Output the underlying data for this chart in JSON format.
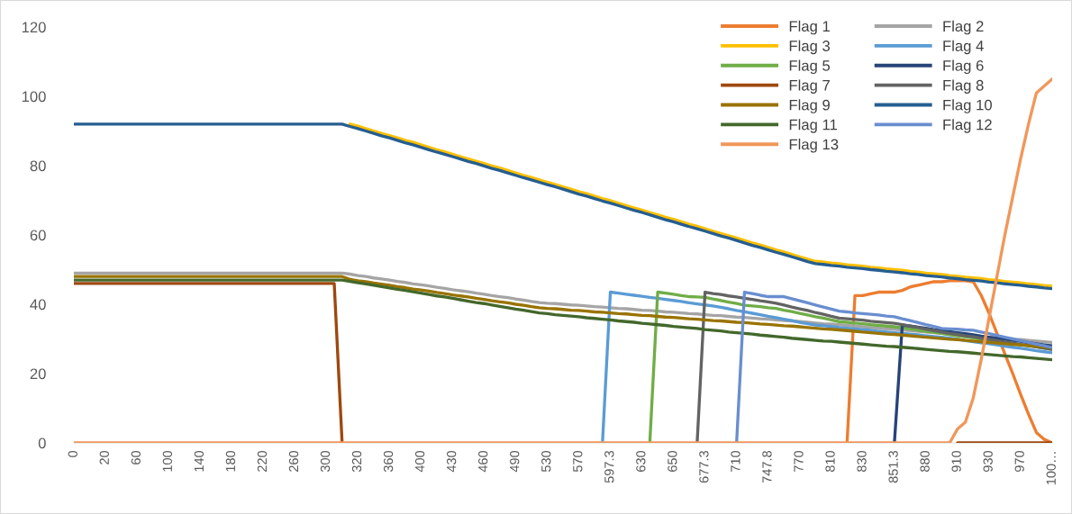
{
  "chart_data": {
    "type": "line",
    "categories": [
      "0",
      null,
      null,
      null,
      "20",
      null,
      null,
      null,
      "60",
      null,
      null,
      null,
      "100",
      null,
      null,
      null,
      "140",
      null,
      null,
      null,
      "180",
      null,
      null,
      null,
      "220",
      null,
      null,
      null,
      "260",
      null,
      null,
      null,
      "300",
      null,
      null,
      null,
      "320",
      null,
      null,
      null,
      "360",
      null,
      null,
      null,
      "400",
      null,
      null,
      null,
      "430",
      null,
      null,
      null,
      "460",
      null,
      null,
      null,
      "490",
      null,
      null,
      null,
      "530",
      null,
      null,
      null,
      "570",
      null,
      null,
      null,
      "597.3",
      null,
      null,
      null,
      "630",
      null,
      null,
      null,
      "650",
      null,
      null,
      null,
      "677.3",
      null,
      null,
      null,
      "710",
      null,
      null,
      null,
      "747.8",
      null,
      null,
      null,
      "770",
      null,
      null,
      null,
      "810",
      null,
      null,
      null,
      "830",
      null,
      null,
      null,
      "851.3",
      null,
      null,
      null,
      "880",
      null,
      null,
      null,
      "910",
      null,
      null,
      null,
      "930",
      null,
      null,
      null,
      "970",
      null,
      null,
      null,
      "100…"
    ],
    "series": [
      {
        "name": "Flag 1",
        "color": "#ed7d31",
        "values": [
          null,
          null,
          null,
          null,
          null,
          null,
          null,
          null,
          null,
          null,
          null,
          null,
          null,
          null,
          null,
          null,
          null,
          null,
          null,
          null,
          null,
          null,
          null,
          null,
          null,
          null,
          null,
          null,
          null,
          null,
          null,
          null,
          null,
          null,
          null,
          null,
          null,
          null,
          null,
          null,
          null,
          null,
          null,
          null,
          null,
          null,
          null,
          null,
          null,
          null,
          null,
          null,
          null,
          null,
          null,
          null,
          null,
          null,
          null,
          null,
          null,
          null,
          null,
          null,
          null,
          null,
          null,
          null,
          null,
          null,
          null,
          null,
          null,
          null,
          null,
          null,
          null,
          null,
          null,
          null,
          null,
          null,
          null,
          null,
          null,
          null,
          null,
          null,
          null,
          null,
          null,
          null,
          null,
          null,
          null,
          null,
          null,
          null,
          0,
          42.5,
          42.5,
          43.0,
          43.5,
          43.5,
          43.5,
          44.0,
          45.0,
          45.5,
          46.0,
          46.5,
          46.5,
          46.8,
          46.8,
          46.8,
          46.5,
          42.6,
          37.4,
          31.6,
          25.7,
          20.0,
          14.0,
          8.3,
          3.0,
          1.0,
          0
        ]
      },
      {
        "name": "Flag 2",
        "color": "#a5a5a5",
        "values": [
          49,
          49,
          49,
          49,
          49,
          49,
          49,
          49,
          49,
          49,
          49,
          49,
          49,
          49,
          49,
          49,
          49,
          49,
          49,
          49,
          49,
          49,
          49,
          49,
          49,
          49,
          49,
          49,
          49,
          49,
          49,
          49,
          49,
          49,
          49,
          48.7,
          48.3,
          48.0,
          47.6,
          47.3,
          47.0,
          46.6,
          46.3,
          45.9,
          45.6,
          45.3,
          44.9,
          44.6,
          44.2,
          43.9,
          43.6,
          43.2,
          42.9,
          42.5,
          42.2,
          41.9,
          41.5,
          41.2,
          40.8,
          40.5,
          40.3,
          40.2,
          40.0,
          39.8,
          39.7,
          39.5,
          39.3,
          39.2,
          39.0,
          38.8,
          38.7,
          38.5,
          38.3,
          38.2,
          38.0,
          37.8,
          37.7,
          37.5,
          37.3,
          37.2,
          37.0,
          36.8,
          36.7,
          36.5,
          36.3,
          36.2,
          36.0,
          35.8,
          35.7,
          35.5,
          35.3,
          35.2,
          35.0,
          34.8,
          34.6,
          34.4,
          34.3,
          34.1,
          33.9,
          33.7,
          33.5,
          33.3,
          33.1,
          32.9,
          32.8,
          32.6,
          32.4,
          32.2,
          32.0,
          31.8,
          31.6,
          31.4,
          31.3,
          31.1,
          30.9,
          30.7,
          30.5,
          30.3,
          30.1,
          29.9,
          29.8,
          29.6,
          29.4,
          29.2,
          29.0
        ]
      },
      {
        "name": "Flag 3",
        "color": "#ffc000",
        "values": [
          null,
          null,
          null,
          null,
          null,
          null,
          null,
          null,
          null,
          null,
          null,
          null,
          null,
          null,
          null,
          null,
          null,
          null,
          null,
          null,
          null,
          null,
          null,
          null,
          null,
          null,
          null,
          null,
          null,
          null,
          null,
          null,
          null,
          null,
          null,
          92.0,
          91.4,
          90.7,
          90.0,
          89.3,
          88.7,
          88.0,
          87.3,
          86.7,
          86.0,
          85.3,
          84.6,
          84.0,
          83.3,
          82.6,
          81.9,
          81.3,
          80.6,
          79.9,
          79.3,
          78.6,
          77.9,
          77.2,
          76.6,
          75.9,
          75.2,
          74.6,
          73.9,
          73.2,
          72.5,
          71.9,
          71.2,
          70.5,
          69.9,
          69.2,
          68.5,
          67.8,
          67.2,
          66.5,
          65.8,
          65.1,
          64.5,
          63.8,
          63.1,
          62.5,
          61.8,
          61.1,
          60.4,
          59.8,
          59.1,
          58.4,
          57.7,
          57.1,
          56.4,
          55.7,
          55.1,
          54.4,
          53.7,
          53.0,
          52.4,
          52.2,
          51.9,
          51.7,
          51.4,
          51.2,
          51.0,
          50.7,
          50.5,
          50.2,
          50.0,
          49.8,
          49.5,
          49.3,
          49.0,
          48.8,
          48.6,
          48.3,
          48.1,
          47.8,
          47.6,
          47.4,
          47.1,
          46.9,
          46.6,
          46.4,
          46.2,
          45.9,
          45.7,
          45.4,
          45.2
        ]
      },
      {
        "name": "Flag 4",
        "color": "#5b9bd5",
        "values": [
          null,
          null,
          null,
          null,
          null,
          null,
          null,
          null,
          null,
          null,
          null,
          null,
          null,
          null,
          null,
          null,
          null,
          null,
          null,
          null,
          null,
          null,
          null,
          null,
          null,
          null,
          null,
          null,
          null,
          null,
          null,
          null,
          null,
          null,
          null,
          null,
          null,
          null,
          null,
          null,
          null,
          null,
          null,
          null,
          null,
          null,
          null,
          null,
          null,
          null,
          null,
          null,
          null,
          null,
          null,
          null,
          null,
          null,
          null,
          null,
          null,
          null,
          null,
          null,
          null,
          null,
          null,
          0,
          43.5,
          43.2,
          42.9,
          42.6,
          42.3,
          42.0,
          41.7,
          41.4,
          41.1,
          40.8,
          40.4,
          40.1,
          39.8,
          39.5,
          39.1,
          38.7,
          38.2,
          37.8,
          37.4,
          37.0,
          36.5,
          36.1,
          35.7,
          35.3,
          34.8,
          34.4,
          34.0,
          33.8,
          33.6,
          33.3,
          33.1,
          32.9,
          32.7,
          32.5,
          32.2,
          32.0,
          31.8,
          31.6,
          31.4,
          31.2,
          30.9,
          30.7,
          30.5,
          30.2,
          29.9,
          29.5,
          29.2,
          28.9,
          28.6,
          28.3,
          27.9,
          27.6,
          27.3,
          27.0,
          26.6,
          26.3,
          26.0
        ]
      },
      {
        "name": "Flag 5",
        "color": "#70ad47",
        "values": [
          null,
          null,
          null,
          null,
          null,
          null,
          null,
          null,
          null,
          null,
          null,
          null,
          null,
          null,
          null,
          null,
          null,
          null,
          null,
          null,
          null,
          null,
          null,
          null,
          null,
          null,
          null,
          null,
          null,
          null,
          null,
          null,
          null,
          null,
          null,
          null,
          null,
          null,
          null,
          null,
          null,
          null,
          null,
          null,
          null,
          null,
          null,
          null,
          null,
          null,
          null,
          null,
          null,
          null,
          null,
          null,
          null,
          null,
          null,
          null,
          null,
          null,
          null,
          null,
          null,
          null,
          null,
          null,
          null,
          null,
          null,
          null,
          null,
          0,
          43.5,
          43.2,
          42.9,
          42.5,
          42.2,
          42.1,
          42.0,
          41.5,
          41.1,
          40.6,
          40.2,
          39.7,
          39.5,
          39.3,
          39.0,
          38.8,
          38.3,
          37.9,
          37.4,
          36.9,
          36.4,
          36.0,
          35.5,
          35.0,
          34.8,
          34.6,
          34.4,
          34.1,
          33.9,
          33.7,
          33.5,
          33.2,
          32.9,
          32.5,
          32.2,
          31.9,
          31.6,
          31.2,
          30.9,
          30.6,
          30.3,
          29.9,
          29.6,
          29.3,
          29.0,
          28.6,
          28.3,
          28.0,
          27.7,
          27.3,
          27.0
        ]
      },
      {
        "name": "Flag 6",
        "color": "#264478",
        "values": [
          null,
          null,
          null,
          null,
          null,
          null,
          null,
          null,
          null,
          null,
          null,
          null,
          null,
          null,
          null,
          null,
          null,
          null,
          null,
          null,
          null,
          null,
          null,
          null,
          null,
          null,
          null,
          null,
          null,
          null,
          null,
          null,
          null,
          null,
          null,
          null,
          null,
          null,
          null,
          null,
          null,
          null,
          null,
          null,
          null,
          null,
          null,
          null,
          null,
          null,
          null,
          null,
          null,
          null,
          null,
          null,
          null,
          null,
          null,
          null,
          null,
          null,
          null,
          null,
          null,
          null,
          null,
          null,
          null,
          null,
          null,
          null,
          null,
          null,
          null,
          null,
          null,
          null,
          null,
          null,
          null,
          null,
          null,
          null,
          null,
          null,
          null,
          null,
          null,
          null,
          null,
          null,
          null,
          null,
          null,
          null,
          null,
          null,
          null,
          null,
          null,
          null,
          null,
          null,
          0,
          34.0,
          33.7,
          33.4,
          33.1,
          32.7,
          32.4,
          32.1,
          31.8,
          31.5,
          31.2,
          30.8,
          30.5,
          30.2,
          29.9,
          29.6,
          29.3,
          28.9,
          28.6,
          28.3,
          28.0
        ]
      },
      {
        "name": "Flag 7",
        "color": "#9e480e",
        "values": [
          46,
          46,
          46,
          46,
          46,
          46,
          46,
          46,
          46,
          46,
          46,
          46,
          46,
          46,
          46,
          46,
          46,
          46,
          46,
          46,
          46,
          46,
          46,
          46,
          46,
          46,
          46,
          46,
          46,
          46,
          46,
          46,
          46,
          46,
          0,
          null,
          null,
          null,
          null,
          null,
          null,
          null,
          null,
          null,
          null,
          null,
          null,
          null,
          null,
          null,
          null,
          null,
          null,
          null,
          null,
          null,
          null,
          null,
          null,
          null,
          null,
          null,
          null,
          null,
          null,
          null,
          null,
          null,
          null,
          null,
          null,
          null,
          null,
          null,
          null,
          null,
          null,
          null,
          null,
          null,
          null,
          null,
          null,
          null,
          null,
          null,
          null,
          null,
          null,
          null,
          null,
          null,
          null,
          null,
          null,
          null,
          null,
          null,
          null,
          null,
          null,
          null,
          null,
          null,
          null,
          null,
          null,
          null,
          null,
          null,
          null,
          null,
          0,
          0,
          0,
          0,
          0,
          0,
          0,
          0,
          0,
          0,
          0,
          0,
          0
        ]
      },
      {
        "name": "Flag 8",
        "color": "#636363",
        "values": [
          null,
          null,
          null,
          null,
          null,
          null,
          null,
          null,
          null,
          null,
          null,
          null,
          null,
          null,
          null,
          null,
          null,
          null,
          null,
          null,
          null,
          null,
          null,
          null,
          null,
          null,
          null,
          null,
          null,
          null,
          null,
          null,
          null,
          null,
          null,
          null,
          null,
          null,
          null,
          null,
          null,
          null,
          null,
          null,
          null,
          null,
          null,
          null,
          null,
          null,
          null,
          null,
          null,
          null,
          null,
          null,
          null,
          null,
          null,
          null,
          null,
          null,
          null,
          null,
          null,
          null,
          null,
          null,
          null,
          null,
          null,
          null,
          null,
          null,
          null,
          null,
          null,
          null,
          null,
          0,
          43.5,
          43.1,
          42.8,
          42.4,
          42.1,
          41.7,
          41.4,
          41.0,
          40.7,
          40.3,
          39.8,
          39.2,
          38.7,
          38.2,
          37.6,
          37.1,
          36.5,
          36.0,
          35.8,
          35.6,
          35.4,
          35.1,
          34.9,
          34.7,
          34.5,
          34.1,
          33.7,
          33.3,
          32.8,
          32.4,
          32.0,
          31.6,
          31.3,
          30.9,
          30.6,
          30.2,
          29.9,
          29.5,
          29.1,
          28.8,
          28.4,
          28.1,
          27.7,
          27.4,
          27.0
        ]
      },
      {
        "name": "Flag 9",
        "color": "#997300",
        "values": [
          48,
          48,
          48,
          48,
          48,
          48,
          48,
          48,
          48,
          48,
          48,
          48,
          48,
          48,
          48,
          48,
          48,
          48,
          48,
          48,
          48,
          48,
          48,
          48,
          48,
          48,
          48,
          48,
          48,
          48,
          48,
          48,
          48,
          48,
          48,
          47.2,
          46.8,
          46.5,
          46.1,
          45.8,
          45.5,
          45.1,
          44.8,
          44.4,
          44.1,
          43.8,
          43.4,
          43.1,
          42.7,
          42.4,
          42.1,
          41.7,
          41.4,
          41.0,
          40.7,
          40.4,
          40.0,
          39.7,
          39.3,
          39.0,
          38.8,
          38.7,
          38.5,
          38.3,
          38.2,
          38.0,
          37.8,
          37.7,
          37.5,
          37.3,
          37.2,
          37.0,
          36.8,
          36.7,
          36.5,
          36.3,
          36.2,
          36.0,
          35.8,
          35.7,
          35.5,
          35.3,
          35.2,
          35.0,
          34.8,
          34.7,
          34.5,
          34.3,
          34.2,
          34.0,
          33.8,
          33.7,
          33.5,
          33.3,
          33.1,
          32.9,
          32.8,
          32.6,
          32.4,
          32.2,
          32.0,
          31.8,
          31.6,
          31.4,
          31.3,
          31.1,
          30.9,
          30.7,
          30.5,
          30.3,
          30.1,
          29.9,
          29.8,
          29.6,
          29.4,
          29.2,
          29.0,
          28.8,
          28.6,
          28.4,
          28.3,
          28.1,
          27.9,
          27.7,
          27.5
        ]
      },
      {
        "name": "Flag 10",
        "color": "#255e91",
        "values": [
          92,
          92,
          92,
          92,
          92,
          92,
          92,
          92,
          92,
          92,
          92,
          92,
          92,
          92,
          92,
          92,
          92,
          92,
          92,
          92,
          92,
          92,
          92,
          92,
          92,
          92,
          92,
          92,
          92,
          92,
          92,
          92,
          92,
          92,
          92,
          91.3,
          90.7,
          90.0,
          89.3,
          88.6,
          88.0,
          87.3,
          86.6,
          86.0,
          85.3,
          84.6,
          83.9,
          83.3,
          82.6,
          81.9,
          81.2,
          80.6,
          79.9,
          79.2,
          78.6,
          77.9,
          77.2,
          76.5,
          75.9,
          75.2,
          74.5,
          73.9,
          73.2,
          72.5,
          71.8,
          71.2,
          70.5,
          69.8,
          69.2,
          68.5,
          67.8,
          67.1,
          66.5,
          65.8,
          65.1,
          64.4,
          63.8,
          63.1,
          62.4,
          61.8,
          61.1,
          60.4,
          59.7,
          59.1,
          58.4,
          57.7,
          57.0,
          56.4,
          55.7,
          55.0,
          54.4,
          53.7,
          53.0,
          52.3,
          51.7,
          51.5,
          51.2,
          51.0,
          50.7,
          50.5,
          50.3,
          50.0,
          49.8,
          49.5,
          49.3,
          49.1,
          48.8,
          48.6,
          48.3,
          48.1,
          47.9,
          47.6,
          47.4,
          47.1,
          46.9,
          46.7,
          46.4,
          46.2,
          45.9,
          45.7,
          45.5,
          45.2,
          45.0,
          44.7,
          44.5
        ]
      },
      {
        "name": "Flag 11",
        "color": "#43682b",
        "values": [
          47,
          47,
          47,
          47,
          47,
          47,
          47,
          47,
          47,
          47,
          47,
          47,
          47,
          47,
          47,
          47,
          47,
          47,
          47,
          47,
          47,
          47,
          47,
          47,
          47,
          47,
          47,
          47,
          47,
          47,
          47,
          47,
          47,
          47,
          47,
          46.6,
          46.2,
          45.9,
          45.5,
          45.1,
          44.7,
          44.3,
          44.0,
          43.6,
          43.2,
          42.8,
          42.4,
          42.1,
          41.7,
          41.3,
          40.9,
          40.5,
          40.2,
          39.8,
          39.4,
          39.0,
          38.6,
          38.3,
          37.9,
          37.5,
          37.3,
          37.0,
          36.8,
          36.6,
          36.4,
          36.1,
          35.9,
          35.7,
          35.5,
          35.2,
          35.0,
          34.8,
          34.5,
          34.3,
          34.1,
          33.9,
          33.6,
          33.4,
          33.2,
          33.0,
          32.7,
          32.5,
          32.3,
          32.0,
          31.8,
          31.6,
          31.4,
          31.1,
          30.9,
          30.7,
          30.5,
          30.2,
          30.0,
          29.8,
          29.6,
          29.4,
          29.3,
          29.1,
          28.9,
          28.7,
          28.5,
          28.3,
          28.1,
          27.9,
          27.8,
          27.6,
          27.4,
          27.2,
          27.0,
          26.8,
          26.6,
          26.4,
          26.3,
          26.1,
          25.9,
          25.7,
          25.5,
          25.3,
          25.1,
          24.9,
          24.8,
          24.6,
          24.4,
          24.2,
          24.0
        ]
      },
      {
        "name": "Flag 12",
        "color": "#698ed0",
        "values": [
          null,
          null,
          null,
          null,
          null,
          null,
          null,
          null,
          null,
          null,
          null,
          null,
          null,
          null,
          null,
          null,
          null,
          null,
          null,
          null,
          null,
          null,
          null,
          null,
          null,
          null,
          null,
          null,
          null,
          null,
          null,
          null,
          null,
          null,
          null,
          null,
          null,
          null,
          null,
          null,
          null,
          null,
          null,
          null,
          null,
          null,
          null,
          null,
          null,
          null,
          null,
          null,
          null,
          null,
          null,
          null,
          null,
          null,
          null,
          null,
          null,
          null,
          null,
          null,
          null,
          null,
          null,
          null,
          null,
          null,
          null,
          null,
          null,
          null,
          null,
          null,
          null,
          null,
          null,
          null,
          null,
          null,
          null,
          null,
          0,
          43.5,
          43.1,
          42.6,
          42.2,
          42.2,
          42.2,
          41.6,
          41.0,
          40.4,
          39.8,
          39.2,
          38.6,
          38.0,
          37.8,
          37.5,
          37.3,
          37.1,
          36.9,
          36.6,
          36.4,
          35.8,
          35.3,
          34.7,
          34.1,
          33.6,
          33.0,
          32.9,
          32.8,
          32.6,
          32.5,
          32.0,
          31.5,
          31.0,
          30.5,
          30.0,
          29.5,
          29.0,
          28.5,
          28.0,
          27.5
        ]
      },
      {
        "name": "Flag 13",
        "color": "#f1975a",
        "values": [
          0,
          0,
          0,
          0,
          0,
          0,
          0,
          0,
          0,
          0,
          0,
          0,
          0,
          0,
          0,
          0,
          0,
          0,
          0,
          0,
          0,
          0,
          0,
          0,
          0,
          0,
          0,
          0,
          0,
          0,
          0,
          0,
          0,
          0,
          0,
          0,
          0,
          0,
          0,
          0,
          0,
          0,
          0,
          0,
          0,
          0,
          0,
          0,
          0,
          0,
          0,
          0,
          0,
          0,
          0,
          0,
          0,
          0,
          0,
          0,
          0,
          0,
          0,
          0,
          0,
          0,
          0,
          0,
          0,
          0,
          0,
          0,
          0,
          0,
          0,
          0,
          0,
          0,
          0,
          0,
          0,
          0,
          0,
          0,
          0,
          0,
          0,
          0,
          0,
          0,
          0,
          0,
          0,
          0,
          0,
          0,
          0,
          0,
          0,
          0,
          0,
          0,
          0,
          0,
          0,
          0,
          0,
          0,
          0,
          0,
          0,
          0,
          4,
          6,
          13,
          24,
          36,
          48,
          60,
          71,
          82,
          92,
          101,
          103,
          105
        ]
      }
    ],
    "ylim": [
      0,
      120
    ],
    "yticks": [
      0,
      20,
      40,
      60,
      80,
      100,
      120
    ],
    "grid": false,
    "legend": "top right",
    "marker": "none",
    "line_style": "solid"
  }
}
